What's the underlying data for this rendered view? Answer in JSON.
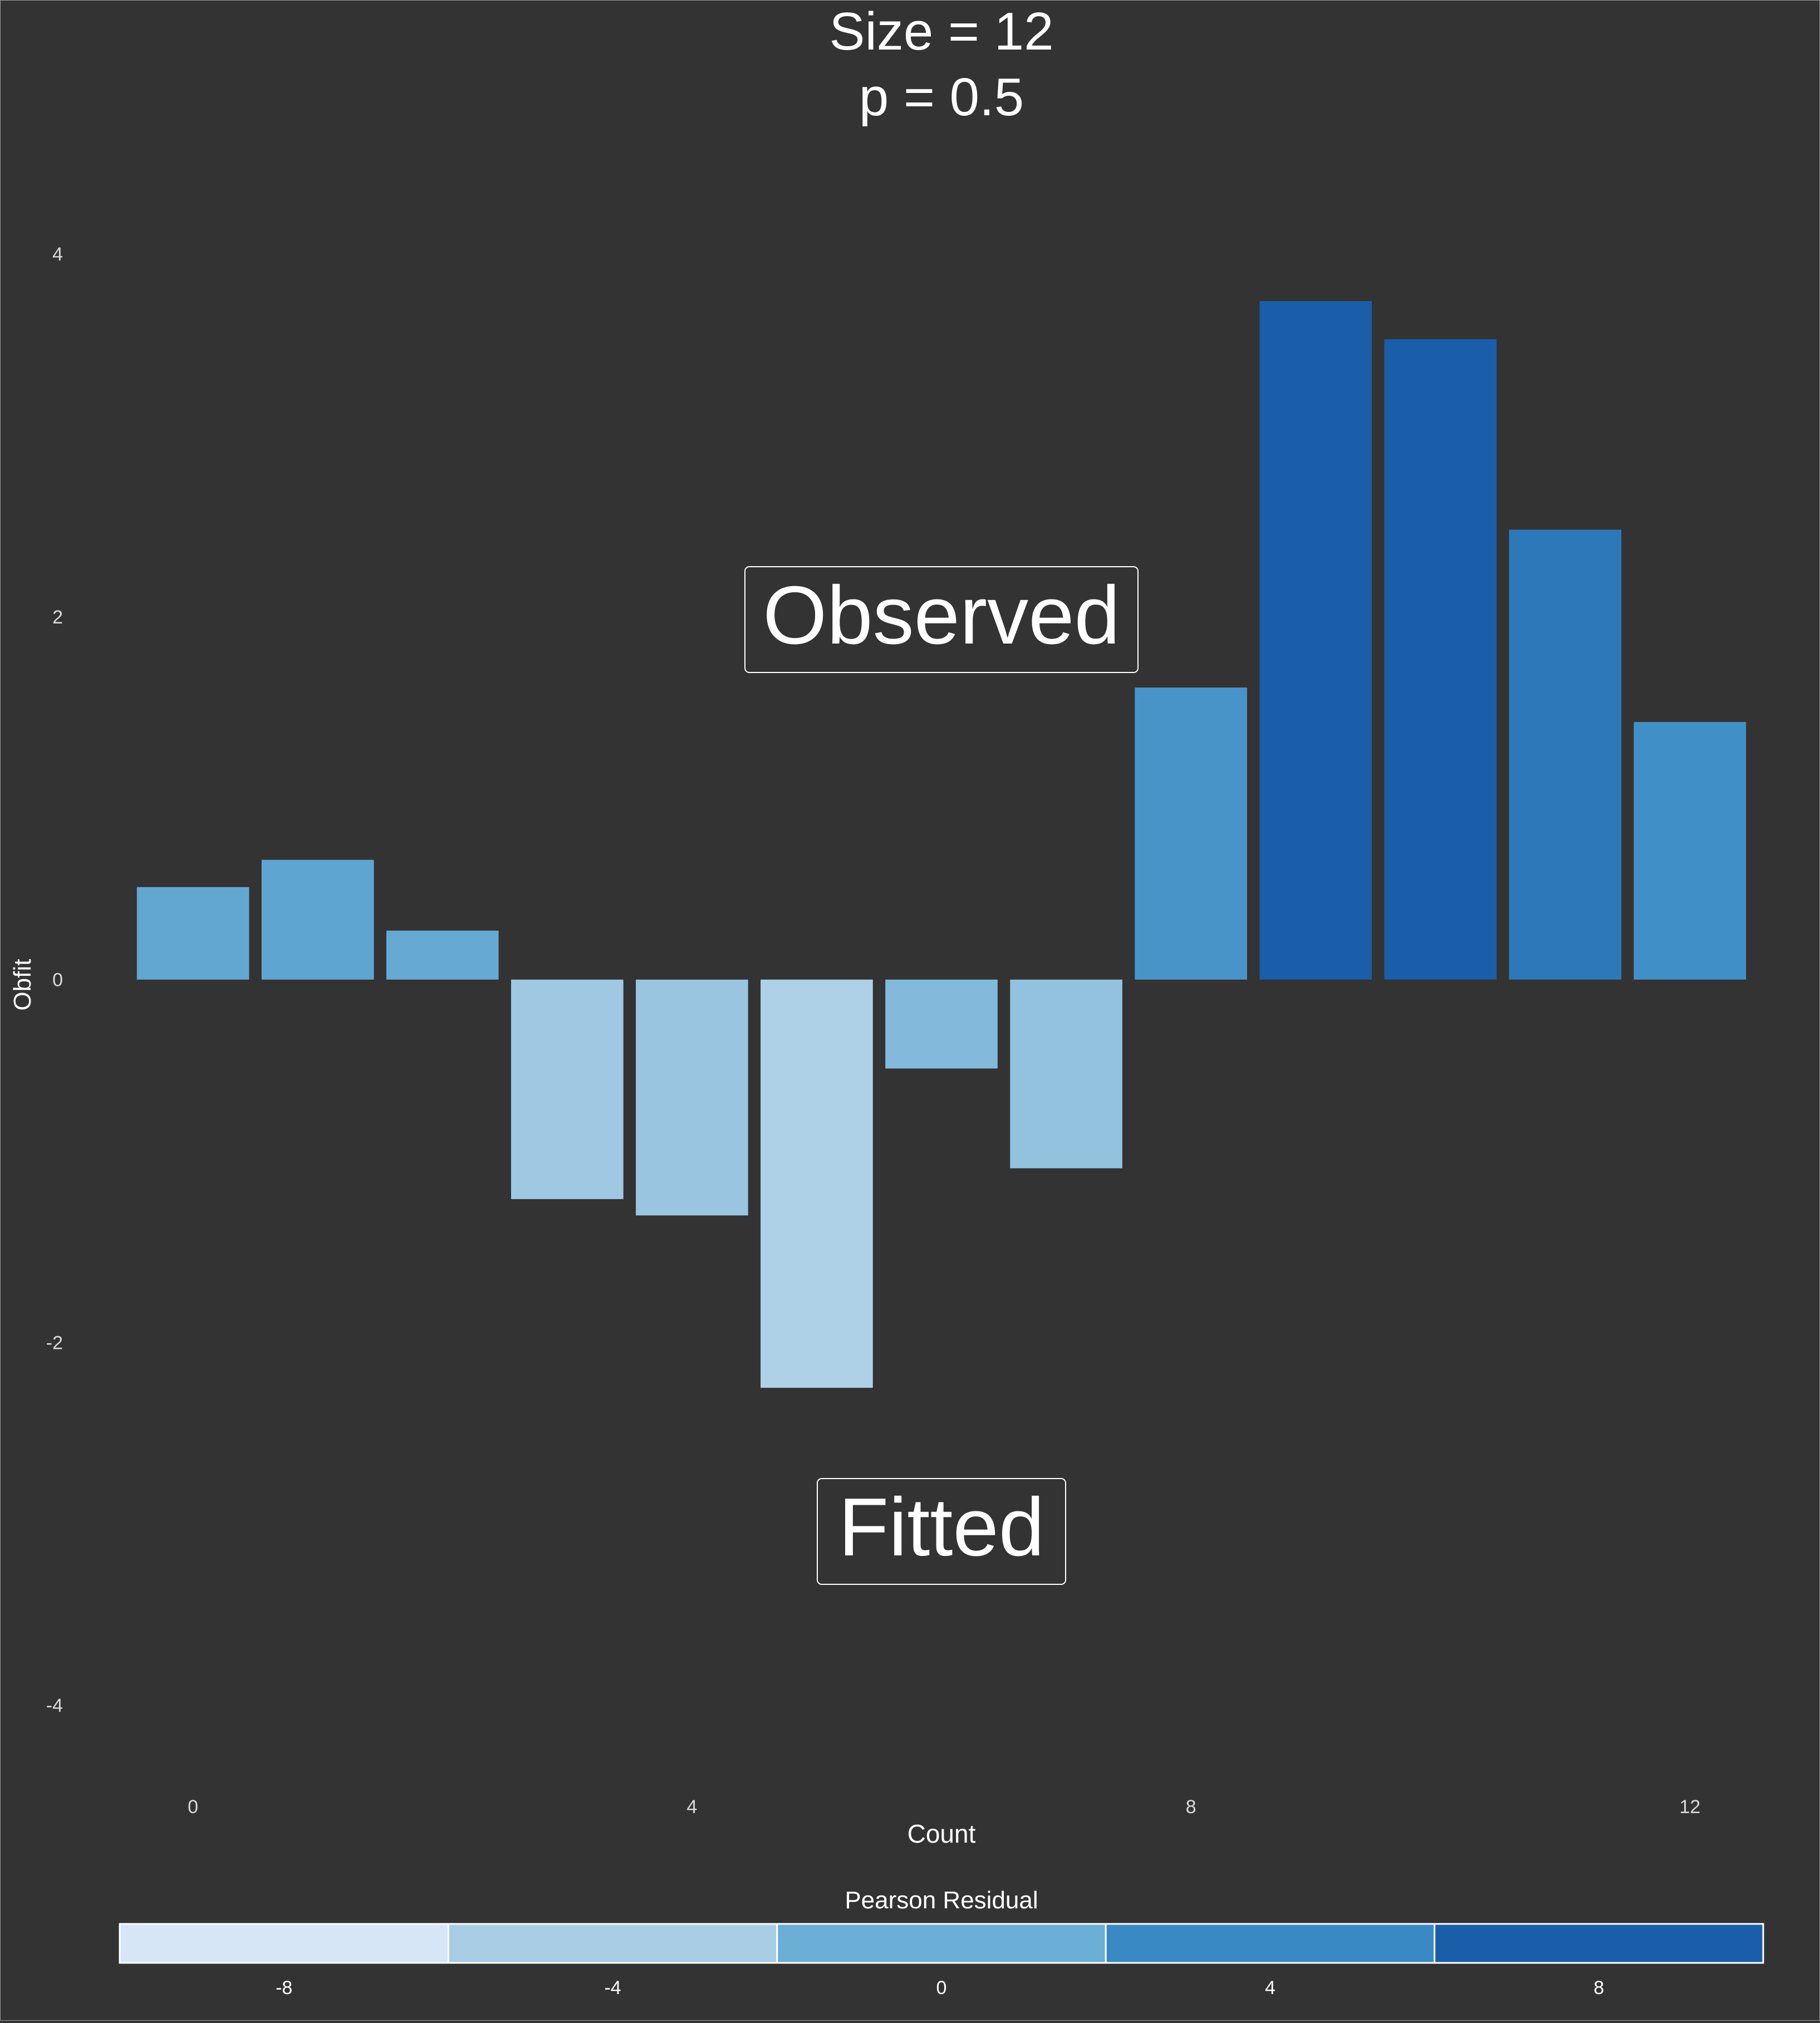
{
  "chart_data": {
    "type": "bar",
    "title_lines": [
      "Size = 12",
      "p = 0.5"
    ],
    "xlabel": "Count",
    "ylabel": "Obfit",
    "x": [
      0,
      1,
      2,
      3,
      4,
      5,
      6,
      7,
      8,
      9,
      10,
      11,
      12
    ],
    "values": [
      0.51,
      0.66,
      0.27,
      -1.21,
      -1.3,
      -2.25,
      -0.49,
      -1.04,
      1.61,
      3.74,
      3.53,
      2.48,
      1.42
    ],
    "residuals": [
      0.8,
      1.0,
      0.4,
      -3.4,
      -3.0,
      -4.6,
      -1.6,
      -2.6,
      2.8,
      8.8,
      8.4,
      5.6,
      3.4
    ],
    "xticks": [
      0,
      4,
      8,
      12
    ],
    "yticks": [
      -4,
      -2,
      0,
      2,
      4
    ],
    "xlim": [
      -0.65,
      12.65
    ],
    "ylim": [
      -4.3,
      4.2
    ],
    "grid": false,
    "annotations": [
      "Observed",
      "Fitted"
    ],
    "legend": {
      "title": "Pearson Residual",
      "position": "bottom",
      "labels": [
        "-8",
        "-4",
        "0",
        "4",
        "8"
      ],
      "colors": [
        "#d6e6f6",
        "#a8cde4",
        "#6baed6",
        "#3989c4",
        "#1a5ea9"
      ]
    },
    "colors": {
      "background": "#333333",
      "text": "#ffffff",
      "tick_text": "#d9d9d9"
    }
  }
}
